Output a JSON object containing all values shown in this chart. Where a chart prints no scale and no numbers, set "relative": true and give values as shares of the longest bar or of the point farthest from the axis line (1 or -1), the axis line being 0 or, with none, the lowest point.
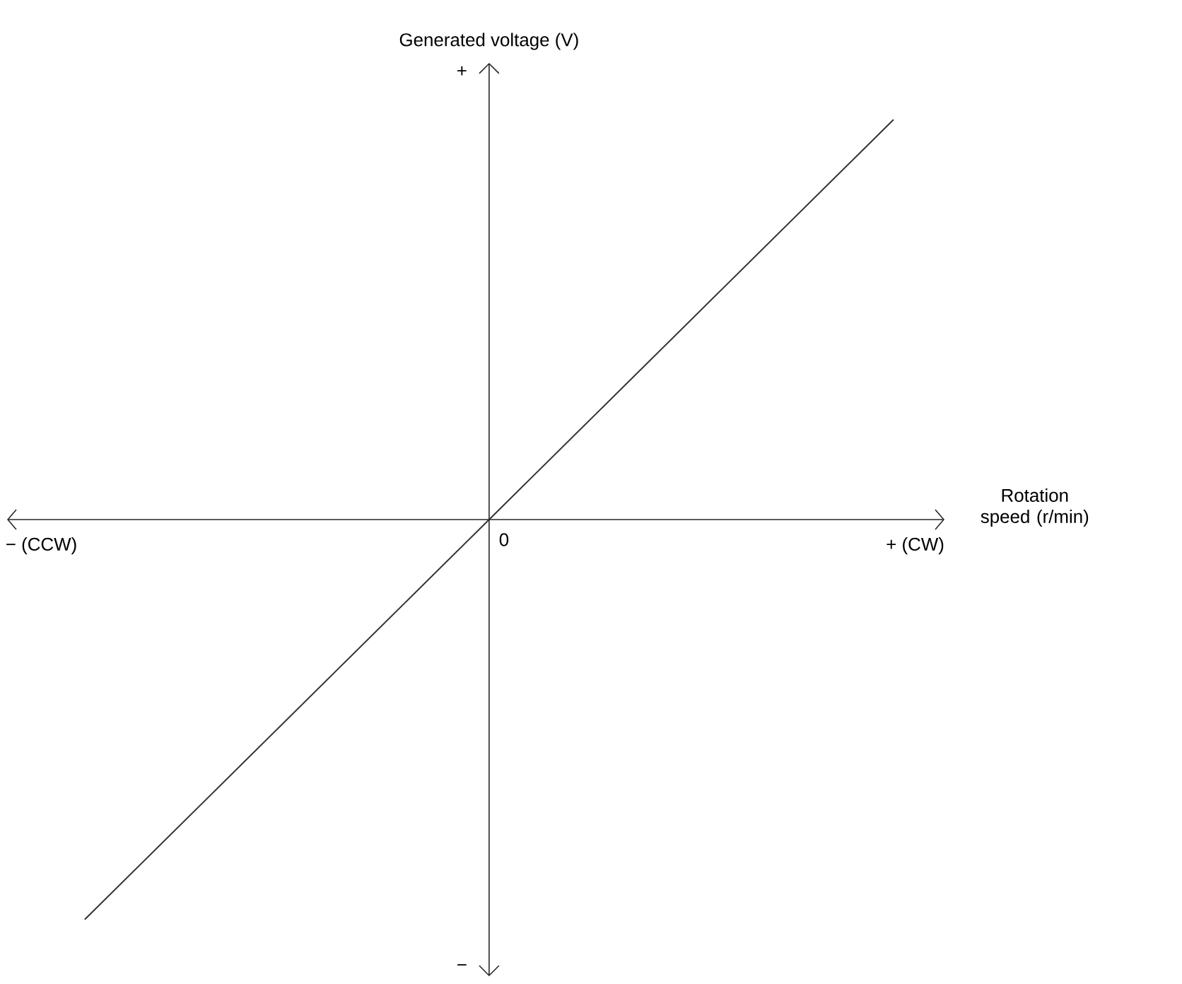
{
  "chart_data": {
    "type": "line",
    "relative": true,
    "xlabel": "Rotation speed (r/min)",
    "ylabel": "Generated voltage (V)",
    "categories": [
      null,
      null,
      null
    ],
    "values": [
      -1,
      0,
      1
    ],
    "color": "#333333",
    "annotations": [
      "+",
      "−",
      "− (CCW)",
      "+ (CW)",
      "0"
    ]
  }
}
